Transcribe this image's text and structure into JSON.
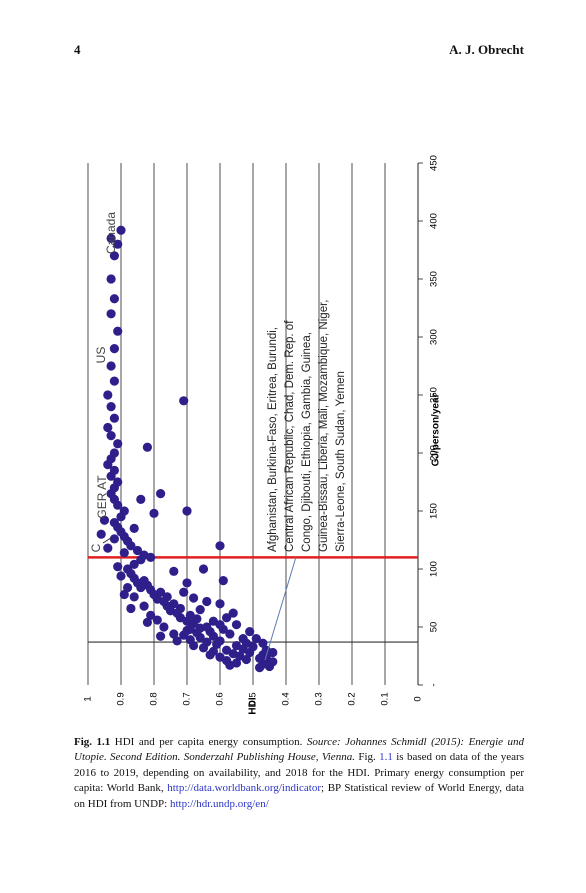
{
  "header": {
    "page_number": "4",
    "author": "A. J. Obrecht"
  },
  "chart_data": {
    "type": "scatter",
    "xlabel": "GJ/person/year",
    "ylabel": "HDI",
    "x_ticks": [
      "-",
      "50",
      "100",
      "150",
      "200",
      "250",
      "300",
      "350",
      "400",
      "450"
    ],
    "y_ticks": [
      "0",
      "0.1",
      "0.2",
      "0.3",
      "0.4",
      "0.5",
      "0.6",
      "0.7",
      "0.8",
      "0.9",
      "1"
    ],
    "xlim": [
      0,
      450
    ],
    "ylim": [
      0,
      1
    ],
    "grid": "horizontal",
    "vlines": [
      {
        "x": 37,
        "color": "#333333"
      },
      {
        "x": 110,
        "color": "#e02020"
      }
    ],
    "point_color": "#2e1f8a",
    "points": [
      [
        16,
        0.45
      ],
      [
        20,
        0.46
      ],
      [
        18,
        0.47
      ],
      [
        23,
        0.48
      ],
      [
        26,
        0.47
      ],
      [
        30,
        0.46
      ],
      [
        15,
        0.48
      ],
      [
        22,
        0.52
      ],
      [
        28,
        0.51
      ],
      [
        33,
        0.5
      ],
      [
        19,
        0.55
      ],
      [
        25,
        0.54
      ],
      [
        31,
        0.53
      ],
      [
        36,
        0.52
      ],
      [
        17,
        0.57
      ],
      [
        21,
        0.58
      ],
      [
        27,
        0.56
      ],
      [
        34,
        0.55
      ],
      [
        40,
        0.53
      ],
      [
        44,
        0.57
      ],
      [
        48,
        0.59
      ],
      [
        52,
        0.6
      ],
      [
        38,
        0.6
      ],
      [
        42,
        0.62
      ],
      [
        46,
        0.63
      ],
      [
        50,
        0.64
      ],
      [
        24,
        0.6
      ],
      [
        29,
        0.62
      ],
      [
        35,
        0.61
      ],
      [
        32,
        0.65
      ],
      [
        37,
        0.64
      ],
      [
        41,
        0.66
      ],
      [
        45,
        0.67
      ],
      [
        49,
        0.66
      ],
      [
        53,
        0.68
      ],
      [
        57,
        0.67
      ],
      [
        60,
        0.69
      ],
      [
        55,
        0.7
      ],
      [
        47,
        0.7
      ],
      [
        43,
        0.71
      ],
      [
        39,
        0.69
      ],
      [
        34,
        0.68
      ],
      [
        58,
        0.72
      ],
      [
        62,
        0.73
      ],
      [
        66,
        0.72
      ],
      [
        70,
        0.74
      ],
      [
        64,
        0.75
      ],
      [
        68,
        0.76
      ],
      [
        72,
        0.77
      ],
      [
        76,
        0.76
      ],
      [
        80,
        0.78
      ],
      [
        74,
        0.79
      ],
      [
        78,
        0.8
      ],
      [
        82,
        0.81
      ],
      [
        86,
        0.82
      ],
      [
        90,
        0.83
      ],
      [
        84,
        0.84
      ],
      [
        88,
        0.85
      ],
      [
        92,
        0.86
      ],
      [
        96,
        0.87
      ],
      [
        100,
        0.88
      ],
      [
        104,
        0.86
      ],
      [
        108,
        0.84
      ],
      [
        112,
        0.83
      ],
      [
        116,
        0.85
      ],
      [
        120,
        0.87
      ],
      [
        124,
        0.88
      ],
      [
        128,
        0.89
      ],
      [
        132,
        0.9
      ],
      [
        136,
        0.91
      ],
      [
        140,
        0.92
      ],
      [
        145,
        0.9
      ],
      [
        150,
        0.89
      ],
      [
        155,
        0.91
      ],
      [
        160,
        0.92
      ],
      [
        165,
        0.93
      ],
      [
        170,
        0.92
      ],
      [
        175,
        0.91
      ],
      [
        180,
        0.93
      ],
      [
        185,
        0.92
      ],
      [
        190,
        0.94
      ],
      [
        195,
        0.93
      ],
      [
        200,
        0.92
      ],
      [
        208,
        0.91
      ],
      [
        215,
        0.93
      ],
      [
        222,
        0.94
      ],
      [
        230,
        0.92
      ],
      [
        240,
        0.93
      ],
      [
        250,
        0.94
      ],
      [
        262,
        0.92
      ],
      [
        275,
        0.93
      ],
      [
        290,
        0.92
      ],
      [
        305,
        0.91
      ],
      [
        320,
        0.93
      ],
      [
        333,
        0.92
      ],
      [
        350,
        0.93
      ],
      [
        370,
        0.92
      ],
      [
        385,
        0.93
      ],
      [
        392,
        0.9
      ],
      [
        380,
        0.91
      ],
      [
        148,
        0.8
      ],
      [
        165,
        0.78
      ],
      [
        205,
        0.82
      ],
      [
        245,
        0.71
      ],
      [
        150,
        0.7
      ],
      [
        120,
        0.6
      ],
      [
        90,
        0.59
      ],
      [
        75,
        0.68
      ],
      [
        65,
        0.66
      ],
      [
        55,
        0.62
      ],
      [
        110,
        0.81
      ],
      [
        135,
        0.86
      ],
      [
        98,
        0.74
      ],
      [
        88,
        0.7
      ],
      [
        80,
        0.71
      ],
      [
        72,
        0.64
      ],
      [
        62,
        0.56
      ],
      [
        58,
        0.58
      ],
      [
        52,
        0.55
      ],
      [
        46,
        0.51
      ],
      [
        40,
        0.49
      ],
      [
        36,
        0.47
      ],
      [
        28,
        0.44
      ],
      [
        24,
        0.46
      ],
      [
        20,
        0.44
      ],
      [
        30,
        0.58
      ],
      [
        26,
        0.63
      ],
      [
        44,
        0.74
      ],
      [
        50,
        0.77
      ],
      [
        56,
        0.79
      ],
      [
        60,
        0.81
      ],
      [
        68,
        0.83
      ],
      [
        76,
        0.86
      ],
      [
        84,
        0.88
      ],
      [
        94,
        0.9
      ],
      [
        102,
        0.91
      ],
      [
        114,
        0.89
      ],
      [
        126,
        0.92
      ],
      [
        118,
        0.94
      ],
      [
        142,
        0.95
      ],
      [
        130,
        0.96
      ],
      [
        160,
        0.84
      ],
      [
        100,
        0.65
      ],
      [
        70,
        0.6
      ],
      [
        48,
        0.69
      ],
      [
        38,
        0.73
      ],
      [
        42,
        0.78
      ],
      [
        54,
        0.82
      ],
      [
        66,
        0.87
      ],
      [
        78,
        0.89
      ]
    ],
    "annotations": {
      "canada": "Canada",
      "us": "US",
      "ger_at": "GER AT",
      "ch": "C",
      "countries_lines": [
        "Afghanistan, Burkina-Faso, Eritrea, Burundi,",
        "Central African Republic, Chad, Dem. Rep. of",
        "Congo, Djibouti, Ethiopia, Gambia, Guinea,",
        "Guinea-Bissau, Liberia, Mali, Mozambique, Niger,",
        "Sierra-Leone, South Sudan, Yemen"
      ]
    }
  },
  "caption": {
    "label": "Fig. 1.1",
    "part1": " HDI and per capita energy consumption. ",
    "source_italic": "Source: Johannes Schmidl (2015): Energie und Utopie. Second Edition. Sonderzahl Publishing House, Vienna.",
    "part2": " Fig. ",
    "fig_link": "1.1",
    "part3": " is based on data of the years 2016 to 2019, depending on availability, and 2018 for the HDI. Primary energy consumption per capita: World Bank, ",
    "link1": "http://data.worldbank.org/indicator",
    "part4": "; BP Statistical review of World Energy, data on HDI from UNDP: ",
    "link2": "http://hdr.undp.org/en/"
  }
}
